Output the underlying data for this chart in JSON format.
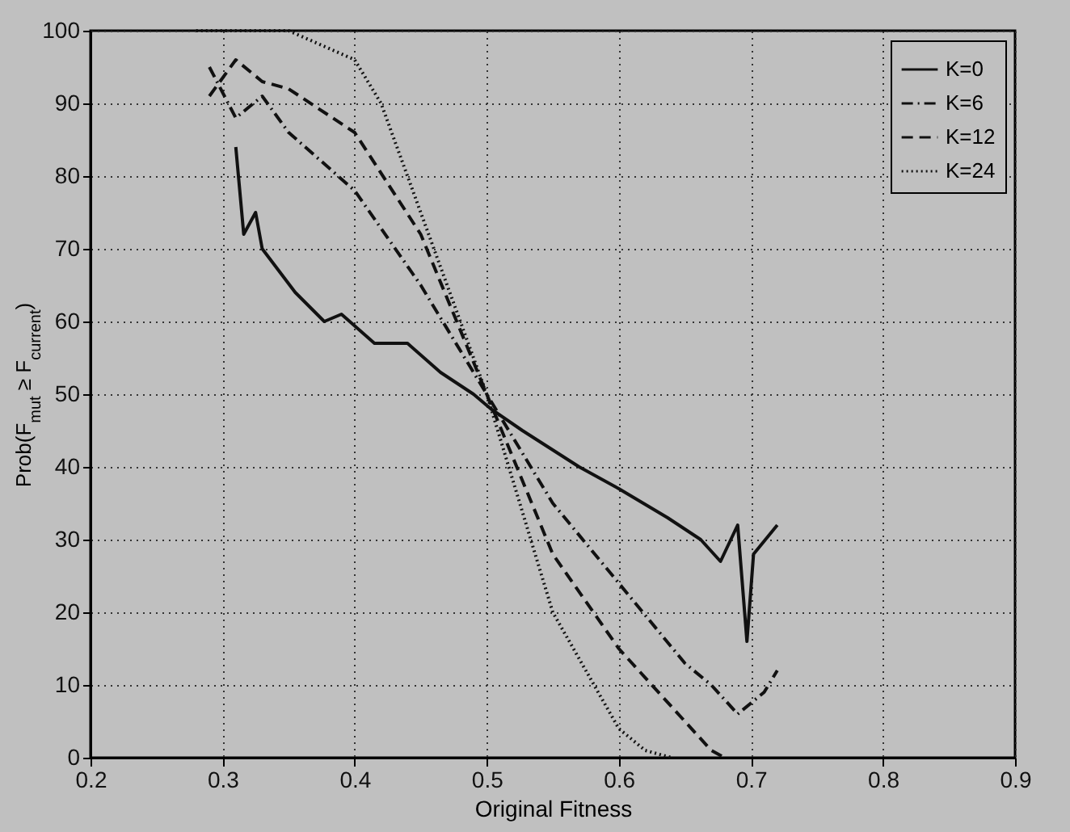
{
  "chart_data": {
    "type": "line",
    "xlabel": "Original Fitness",
    "ylabel": "Prob(F$_{mut}$ ≥ F$_{current}$)",
    "xlim": [
      0.2,
      0.9
    ],
    "ylim": [
      0,
      100
    ],
    "xticks": [
      0.2,
      0.3,
      0.4,
      0.5,
      0.6,
      0.7,
      0.8,
      0.9
    ],
    "yticks": [
      0,
      10,
      20,
      30,
      40,
      50,
      60,
      70,
      80,
      90,
      100
    ],
    "grid": true,
    "legend": "top right",
    "marker": "none",
    "series": [
      {
        "name": "K=0",
        "color": "#111111",
        "line_style": "solid",
        "x": [
          0.31,
          0.316,
          0.325,
          0.33,
          0.355,
          0.377,
          0.39,
          0.415,
          0.44,
          0.465,
          0.49,
          0.503,
          0.527,
          0.57,
          0.6,
          0.637,
          0.662,
          0.677,
          0.69,
          0.697,
          0.702,
          0.72
        ],
        "values": [
          84,
          72,
          75,
          70,
          64,
          60,
          61,
          57,
          57,
          53,
          50,
          48,
          45,
          40,
          37,
          33,
          30,
          27,
          32,
          16,
          28,
          32
        ]
      },
      {
        "name": "K=6",
        "color": "#111111",
        "line_style": "dashdot",
        "x": [
          0.29,
          0.31,
          0.33,
          0.35,
          0.4,
          0.45,
          0.5,
          0.55,
          0.6,
          0.65,
          0.67,
          0.69,
          0.71,
          0.72
        ],
        "values": [
          95,
          88,
          91,
          86,
          78,
          65,
          50,
          35,
          24,
          13,
          10,
          6,
          9,
          12
        ]
      },
      {
        "name": "K=12",
        "color": "#111111",
        "line_style": "dashed",
        "x": [
          0.29,
          0.31,
          0.33,
          0.35,
          0.4,
          0.45,
          0.5,
          0.55,
          0.6,
          0.65,
          0.67,
          0.68
        ],
        "values": [
          91,
          96,
          93,
          92,
          86,
          72,
          50,
          28,
          15,
          5,
          1,
          0
        ]
      },
      {
        "name": "K=24",
        "color": "#111111",
        "line_style": "dotted",
        "x": [
          0.28,
          0.35,
          0.4,
          0.42,
          0.45,
          0.5,
          0.55,
          0.6,
          0.62,
          0.64
        ],
        "values": [
          100,
          100,
          96,
          90,
          75,
          50,
          20,
          4,
          1,
          0
        ]
      }
    ]
  }
}
